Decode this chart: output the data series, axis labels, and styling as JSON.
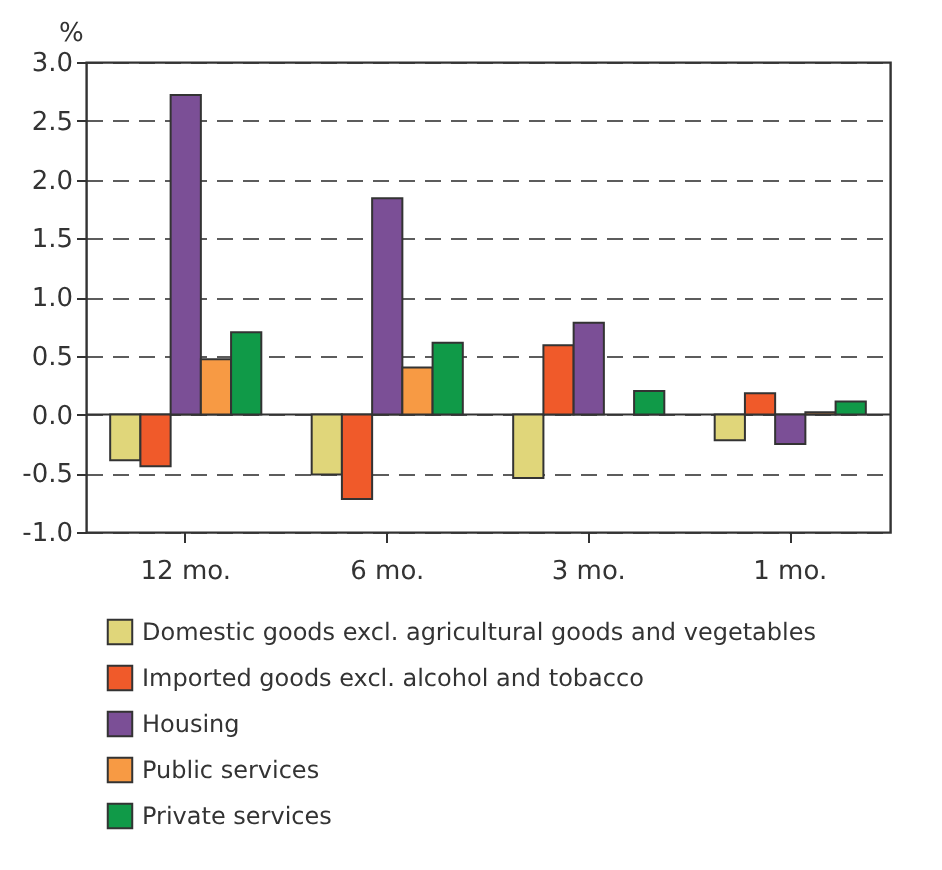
{
  "chart_data": {
    "type": "bar",
    "ylabel": "%",
    "categories": [
      "12 mo.",
      "6 mo.",
      "3 mo.",
      "1 mo."
    ],
    "series": [
      {
        "name": "Domestic goods excl. agricultural goods and vegetables",
        "color": "#e0d67a",
        "values": [
          -0.39,
          -0.51,
          -0.54,
          -0.22
        ]
      },
      {
        "name": "Imported goods excl. alcohol and tobacco",
        "color": "#f05a2a",
        "values": [
          -0.44,
          -0.72,
          0.59,
          0.18
        ]
      },
      {
        "name": "Housing",
        "color": "#7b4f96",
        "values": [
          2.72,
          1.84,
          0.78,
          -0.25
        ]
      },
      {
        "name": "Public services",
        "color": "#f79a44",
        "values": [
          0.47,
          0.4,
          null,
          0.02
        ]
      },
      {
        "name": "Private services",
        "color": "#109a48",
        "values": [
          0.7,
          0.61,
          0.2,
          0.11
        ]
      }
    ],
    "ylim": [
      -1.0,
      3.0
    ],
    "yticks": [
      {
        "value": -1.0,
        "label": "-1.0"
      },
      {
        "value": -0.5,
        "label": "-0.5"
      },
      {
        "value": 0.0,
        "label": "0.0"
      },
      {
        "value": 0.5,
        "label": "0.5"
      },
      {
        "value": 1.0,
        "label": "1.0"
      },
      {
        "value": 1.5,
        "label": "1.5"
      },
      {
        "value": 2.0,
        "label": "2.0"
      },
      {
        "value": 2.5,
        "label": "2.5"
      },
      {
        "value": 3.0,
        "label": "3.0"
      }
    ],
    "grid": "y",
    "legend": "bottom"
  }
}
